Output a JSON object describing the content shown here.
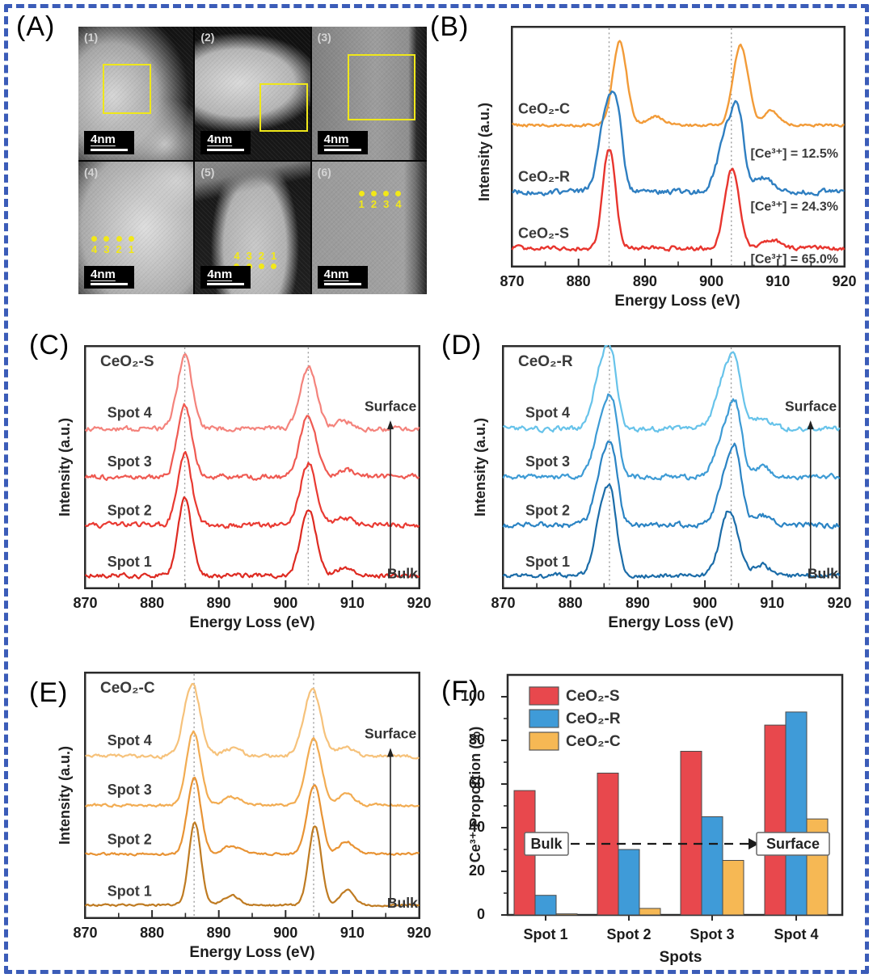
{
  "figure": {
    "panel_labels": {
      "a": "(A)",
      "b": "(B)",
      "c": "(C)",
      "d": "(D)",
      "e": "(E)",
      "f": "(F)"
    }
  },
  "panel_a": {
    "images": [
      {
        "id": "(1)",
        "scale_bar": "4nm",
        "marker": "box"
      },
      {
        "id": "(2)",
        "scale_bar": "4nm",
        "marker": "box"
      },
      {
        "id": "(3)",
        "scale_bar": "4nm",
        "marker": "box"
      },
      {
        "id": "(4)",
        "scale_bar": "4nm",
        "marker": "spots",
        "dots": "above",
        "spot_labels": [
          "4",
          "3",
          "2",
          "1"
        ]
      },
      {
        "id": "(5)",
        "scale_bar": "4nm",
        "marker": "spots",
        "dots": "below",
        "spot_labels": [
          "4",
          "3",
          "2",
          "1"
        ]
      },
      {
        "id": "(6)",
        "scale_bar": "4nm",
        "marker": "spots",
        "dots": "above",
        "spot_labels": [
          "1",
          "2",
          "3",
          "4"
        ]
      }
    ]
  },
  "chart_data": [
    {
      "panel": "B",
      "type": "line",
      "xlabel": "Energy Loss (eV)",
      "ylabel": "Intensity (a.u.)",
      "xlim": [
        870,
        920
      ],
      "xticks": [
        870,
        880,
        890,
        900,
        910,
        920
      ],
      "guides": [
        884.6,
        903.0
      ],
      "series": [
        {
          "name": "CeO₂-C",
          "annotation": "[Ce³⁺] = 12.5%",
          "color": "#F29B38",
          "offset": 0.59,
          "amp": 0.35,
          "noise": 0.01,
          "ann_y": 0.455,
          "peaks": [
            [
              886.2,
              1,
              1.05
            ],
            [
              904.4,
              0.95,
              1.15
            ],
            [
              891.6,
              0.1,
              1.3
            ],
            [
              909.0,
              0.17,
              1.05
            ]
          ]
        },
        {
          "name": "CeO₂-R",
          "annotation": "[Ce³⁺] = 24.3%",
          "color": "#2F7FC1",
          "offset": 0.31,
          "amp": 0.37,
          "noise": 0.018,
          "ann_y": 0.235,
          "peaks": [
            [
              884.4,
              0.95,
              1.25
            ],
            [
              885.9,
              0.55,
              0.8
            ],
            [
              902.7,
              0.75,
              1.5
            ],
            [
              904.1,
              0.5,
              0.8
            ],
            [
              907.9,
              0.17,
              1.3
            ]
          ]
        },
        {
          "name": "CeO₂-S",
          "annotation": "[Ce³⁺] = 65.0%",
          "color": "#E8352E",
          "offset": 0.075,
          "amp": 0.42,
          "noise": 0.016,
          "ann_y": 0.018,
          "peaks": [
            [
              884.6,
              1,
              0.95
            ],
            [
              903.1,
              0.8,
              1.1
            ],
            [
              908.8,
              0.09,
              1.2
            ]
          ]
        }
      ]
    },
    {
      "panel": "C",
      "type": "line",
      "title": "CeO₂-S",
      "xlabel": "Energy Loss (eV)",
      "ylabel": "Intensity (a.u.)",
      "xlim": [
        870,
        920
      ],
      "xticks": [
        870,
        880,
        890,
        900,
        910,
        920
      ],
      "guides": [
        884.9,
        903.4
      ],
      "arrow": {
        "top": "Surface",
        "bottom": "Bulk"
      },
      "series": [
        {
          "name": "Spot 4",
          "color": "#F4837C",
          "offset": 0.66,
          "amp": 0.3,
          "noise": 0.018,
          "peaks": [
            [
              884.9,
              1,
              1.1
            ],
            [
              903.4,
              0.85,
              1.25
            ],
            [
              908.9,
              0.1,
              1.2
            ]
          ]
        },
        {
          "name": "Spot 3",
          "color": "#EF5A52",
          "offset": 0.46,
          "amp": 0.3,
          "noise": 0.018,
          "peaks": [
            [
              884.9,
              1,
              1.05
            ],
            [
              903.4,
              0.85,
              1.2
            ],
            [
              908.9,
              0.1,
              1.2
            ]
          ]
        },
        {
          "name": "Spot 2",
          "color": "#E93A32",
          "offset": 0.26,
          "amp": 0.3,
          "noise": 0.018,
          "peaks": [
            [
              884.9,
              1,
              1.05
            ],
            [
              903.4,
              0.85,
              1.2
            ],
            [
              908.9,
              0.1,
              1.2
            ]
          ]
        },
        {
          "name": "Spot 1",
          "color": "#DE2B22",
          "offset": 0.05,
          "amp": 0.32,
          "noise": 0.016,
          "peaks": [
            [
              884.9,
              1,
              1.0
            ],
            [
              903.4,
              0.85,
              1.15
            ],
            [
              908.9,
              0.1,
              1.2
            ]
          ]
        }
      ]
    },
    {
      "panel": "D",
      "type": "line",
      "title": "CeO₂-R",
      "xlabel": "Energy Loss (eV)",
      "ylabel": "Intensity (a.u.)",
      "xlim": [
        870,
        920
      ],
      "xticks": [
        870,
        880,
        890,
        900,
        910,
        920
      ],
      "guides": [
        885.8,
        903.9
      ],
      "arrow": {
        "top": "Surface",
        "bottom": "Bulk"
      },
      "series": [
        {
          "name": "Spot 4",
          "color": "#67C3EA",
          "offset": 0.66,
          "amp": 0.3,
          "noise": 0.018,
          "peaks": [
            [
              884.9,
              0.95,
              1.3
            ],
            [
              886.3,
              0.5,
              0.8
            ],
            [
              903.3,
              0.8,
              1.5
            ],
            [
              904.6,
              0.45,
              0.8
            ],
            [
              908.3,
              0.14,
              1.3
            ]
          ]
        },
        {
          "name": "Spot 3",
          "color": "#3D9BD5",
          "offset": 0.46,
          "amp": 0.3,
          "noise": 0.018,
          "peaks": [
            [
              885.0,
              0.9,
              1.3
            ],
            [
              886.4,
              0.55,
              0.8
            ],
            [
              903.4,
              0.75,
              1.5
            ],
            [
              904.7,
              0.5,
              0.8
            ],
            [
              908.4,
              0.14,
              1.3
            ]
          ]
        },
        {
          "name": "Spot 2",
          "color": "#2B84C4",
          "offset": 0.26,
          "amp": 0.3,
          "noise": 0.018,
          "peaks": [
            [
              885.0,
              0.9,
              1.25
            ],
            [
              886.4,
              0.55,
              0.8
            ],
            [
              903.5,
              0.8,
              1.4
            ],
            [
              904.7,
              0.5,
              0.8
            ],
            [
              908.4,
              0.14,
              1.3
            ]
          ]
        },
        {
          "name": "Spot 1",
          "color": "#1B6CA8",
          "offset": 0.05,
          "amp": 0.32,
          "noise": 0.016,
          "peaks": [
            [
              885.0,
              0.95,
              1.2
            ],
            [
              886.3,
              0.5,
              0.8
            ],
            [
              903.6,
              0.85,
              1.3
            ],
            [
              908.5,
              0.14,
              1.3
            ]
          ]
        }
      ]
    },
    {
      "panel": "E",
      "type": "line",
      "title": "CeO₂-C",
      "xlabel": "Energy Loss (eV)",
      "ylabel": "Intensity (a.u.)",
      "xlim": [
        870,
        920
      ],
      "xticks": [
        870,
        880,
        890,
        900,
        910,
        920
      ],
      "guides": [
        886.3,
        904.2
      ],
      "arrow": {
        "top": "Surface",
        "bottom": "Bulk"
      },
      "series": [
        {
          "name": "Spot 4",
          "color": "#F6C27B",
          "offset": 0.66,
          "amp": 0.3,
          "noise": 0.012,
          "peaks": [
            [
              886.0,
              1,
              1.2
            ],
            [
              904.0,
              0.9,
              1.3
            ],
            [
              892.0,
              0.1,
              1.4
            ],
            [
              909.0,
              0.14,
              1.2
            ]
          ]
        },
        {
          "name": "Spot 3",
          "color": "#F2AC52",
          "offset": 0.46,
          "amp": 0.3,
          "noise": 0.009,
          "peaks": [
            [
              886.2,
              1,
              1.05
            ],
            [
              904.2,
              0.9,
              1.15
            ],
            [
              891.9,
              0.11,
              1.3
            ],
            [
              909.1,
              0.16,
              1.1
            ]
          ]
        },
        {
          "name": "Spot 2",
          "color": "#E89334",
          "offset": 0.26,
          "amp": 0.31,
          "noise": 0.008,
          "peaks": [
            [
              886.3,
              1,
              1.0
            ],
            [
              904.3,
              0.92,
              1.05
            ],
            [
              891.9,
              0.11,
              1.2
            ],
            [
              909.1,
              0.17,
              1.05
            ]
          ]
        },
        {
          "name": "Spot 1",
          "color": "#BF7B22",
          "offset": 0.05,
          "amp": 0.34,
          "noise": 0.007,
          "peaks": [
            [
              886.4,
              1,
              0.9
            ],
            [
              904.4,
              0.95,
              0.95
            ],
            [
              891.9,
              0.12,
              1.2
            ],
            [
              909.2,
              0.18,
              1.0
            ]
          ]
        }
      ]
    },
    {
      "panel": "F",
      "type": "bar",
      "xlabel": "Spots",
      "ylabel": "Ce³⁺ Proportion (%)",
      "categories": [
        "Spot 1",
        "Spot 2",
        "Spot 3",
        "Spot 4"
      ],
      "ylim": [
        0,
        110
      ],
      "yticks": [
        0,
        20,
        40,
        60,
        80,
        100
      ],
      "bulk_label": "Bulk",
      "surface_label": "Surface",
      "series": [
        {
          "name": "CeO₂-S",
          "color": "#E8484D",
          "values": [
            57,
            65,
            75,
            87
          ]
        },
        {
          "name": "CeO₂-R",
          "color": "#3F9BD8",
          "values": [
            9,
            30,
            45,
            93
          ]
        },
        {
          "name": "CeO₂-C",
          "color": "#F6B854",
          "values": [
            0.5,
            3,
            25,
            44
          ]
        }
      ]
    }
  ]
}
